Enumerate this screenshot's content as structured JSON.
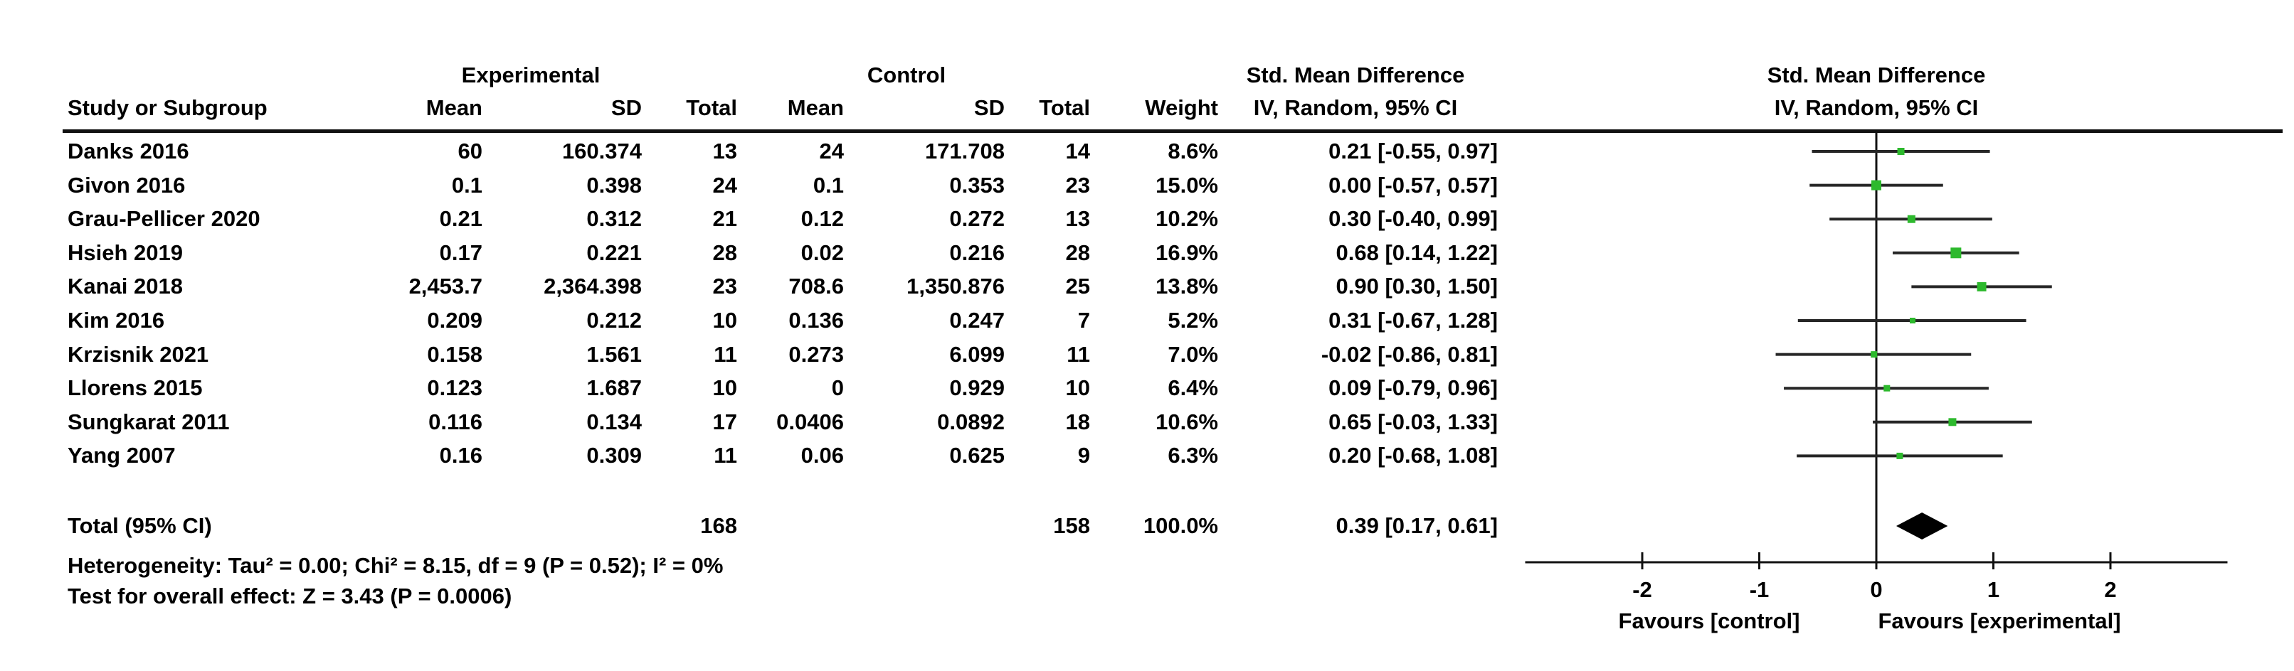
{
  "header": {
    "group_experimental": "Experimental",
    "group_control": "Control",
    "smd_table": "Std. Mean Difference",
    "smd_plot": "Std. Mean Difference",
    "iv_table": "IV, Random, 95% CI",
    "iv_plot": "IV, Random, 95% CI",
    "study": "Study or Subgroup",
    "mean": "Mean",
    "sd": "SD",
    "total": "Total",
    "weight": "Weight"
  },
  "footer": {
    "heterogeneity": "Heterogeneity: Tau² = 0.00; Chi² = 8.15, df = 9 (P = 0.52); I² = 0%",
    "overall_effect": "Test for overall effect: Z = 3.43 (P = 0.0006)"
  },
  "axis": {
    "favours_left": "Favours [control]",
    "favours_right": "Favours [experimental]"
  },
  "chart_data": {
    "type": "forest",
    "effect_measure": "Std. Mean Difference",
    "model": "IV, Random, 95% CI",
    "xlim": [
      -3,
      3
    ],
    "ticks": [
      "-2",
      "-1",
      "0",
      "1",
      "2"
    ],
    "tick_values": [
      -2,
      -1,
      0,
      1,
      2
    ],
    "marker_color": "#2db92d",
    "studies": [
      {
        "name": "Danks 2016",
        "exp_mean": "60",
        "exp_sd": "160.374",
        "exp_total": "13",
        "ctl_mean": "24",
        "ctl_sd": "171.708",
        "ctl_total": "14",
        "weight": "8.6%",
        "ci": "0.21 [-0.55, 0.97]",
        "est": 0.21,
        "lo": -0.55,
        "hi": 0.97,
        "w": 8.6
      },
      {
        "name": "Givon 2016",
        "exp_mean": "0.1",
        "exp_sd": "0.398",
        "exp_total": "24",
        "ctl_mean": "0.1",
        "ctl_sd": "0.353",
        "ctl_total": "23",
        "weight": "15.0%",
        "ci": "0.00 [-0.57, 0.57]",
        "est": 0.0,
        "lo": -0.57,
        "hi": 0.57,
        "w": 15.0
      },
      {
        "name": "Grau-Pellicer 2020",
        "exp_mean": "0.21",
        "exp_sd": "0.312",
        "exp_total": "21",
        "ctl_mean": "0.12",
        "ctl_sd": "0.272",
        "ctl_total": "13",
        "weight": "10.2%",
        "ci": "0.30 [-0.40, 0.99]",
        "est": 0.3,
        "lo": -0.4,
        "hi": 0.99,
        "w": 10.2
      },
      {
        "name": "Hsieh 2019",
        "exp_mean": "0.17",
        "exp_sd": "0.221",
        "exp_total": "28",
        "ctl_mean": "0.02",
        "ctl_sd": "0.216",
        "ctl_total": "28",
        "weight": "16.9%",
        "ci": "0.68 [0.14, 1.22]",
        "est": 0.68,
        "lo": 0.14,
        "hi": 1.22,
        "w": 16.9
      },
      {
        "name": "Kanai 2018",
        "exp_mean": "2,453.7",
        "exp_sd": "2,364.398",
        "exp_total": "23",
        "ctl_mean": "708.6",
        "ctl_sd": "1,350.876",
        "ctl_total": "25",
        "weight": "13.8%",
        "ci": "0.90 [0.30, 1.50]",
        "est": 0.9,
        "lo": 0.3,
        "hi": 1.5,
        "w": 13.8
      },
      {
        "name": "Kim 2016",
        "exp_mean": "0.209",
        "exp_sd": "0.212",
        "exp_total": "10",
        "ctl_mean": "0.136",
        "ctl_sd": "0.247",
        "ctl_total": "7",
        "weight": "5.2%",
        "ci": "0.31 [-0.67, 1.28]",
        "est": 0.31,
        "lo": -0.67,
        "hi": 1.28,
        "w": 5.2
      },
      {
        "name": "Krzisnik 2021",
        "exp_mean": "0.158",
        "exp_sd": "1.561",
        "exp_total": "11",
        "ctl_mean": "0.273",
        "ctl_sd": "6.099",
        "ctl_total": "11",
        "weight": "7.0%",
        "ci": "-0.02 [-0.86, 0.81]",
        "est": -0.02,
        "lo": -0.86,
        "hi": 0.81,
        "w": 7.0
      },
      {
        "name": "Llorens 2015",
        "exp_mean": "0.123",
        "exp_sd": "1.687",
        "exp_total": "10",
        "ctl_mean": "0",
        "ctl_sd": "0.929",
        "ctl_total": "10",
        "weight": "6.4%",
        "ci": "0.09 [-0.79, 0.96]",
        "est": 0.09,
        "lo": -0.79,
        "hi": 0.96,
        "w": 6.4
      },
      {
        "name": "Sungkarat 2011",
        "exp_mean": "0.116",
        "exp_sd": "0.134",
        "exp_total": "17",
        "ctl_mean": "0.0406",
        "ctl_sd": "0.0892",
        "ctl_total": "18",
        "weight": "10.6%",
        "ci": "0.65 [-0.03, 1.33]",
        "est": 0.65,
        "lo": -0.03,
        "hi": 1.33,
        "w": 10.6
      },
      {
        "name": "Yang 2007",
        "exp_mean": "0.16",
        "exp_sd": "0.309",
        "exp_total": "11",
        "ctl_mean": "0.06",
        "ctl_sd": "0.625",
        "ctl_total": "9",
        "weight": "6.3%",
        "ci": "0.20 [-0.68, 1.08]",
        "est": 0.2,
        "lo": -0.68,
        "hi": 1.08,
        "w": 6.3
      }
    ],
    "total": {
      "label": "Total (95% CI)",
      "exp_total": "168",
      "ctl_total": "158",
      "weight": "100.0%",
      "ci": "0.39 [0.17, 0.61]",
      "est": 0.39,
      "lo": 0.17,
      "hi": 0.61
    }
  }
}
